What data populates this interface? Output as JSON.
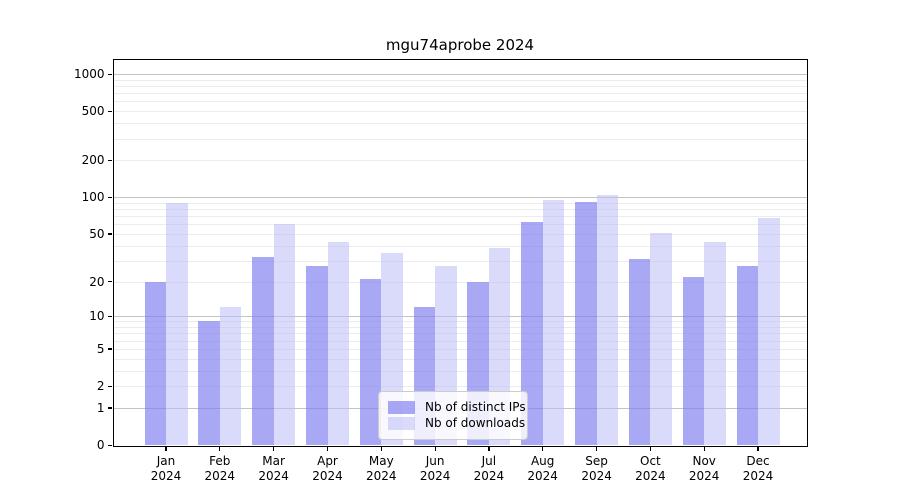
{
  "chart_data": {
    "type": "bar",
    "title": "mgu74aprobe 2024",
    "categories": [
      "Jan",
      "Feb",
      "Mar",
      "Apr",
      "May",
      "Jun",
      "Jul",
      "Aug",
      "Sep",
      "Oct",
      "Nov",
      "Dec"
    ],
    "year_label": "2024",
    "series": [
      {
        "name": "Nb of distinct IPs",
        "values": [
          20,
          9,
          32,
          27,
          21,
          12,
          20,
          63,
          91,
          31,
          22,
          27
        ],
        "color": "#7b7bf0",
        "alpha": 0.66
      },
      {
        "name": "Nb of downloads",
        "values": [
          90,
          12,
          60,
          43,
          35,
          27,
          38,
          95,
          105,
          51,
          43,
          68
        ],
        "color": "#bbbbf7",
        "alpha": 0.55
      }
    ],
    "yticks": [
      0,
      1,
      2,
      5,
      10,
      20,
      50,
      100,
      200,
      500,
      1000
    ],
    "scale": "log1p",
    "ylim": [
      0,
      1230
    ],
    "grid": "on",
    "legend_position": "lower center"
  }
}
